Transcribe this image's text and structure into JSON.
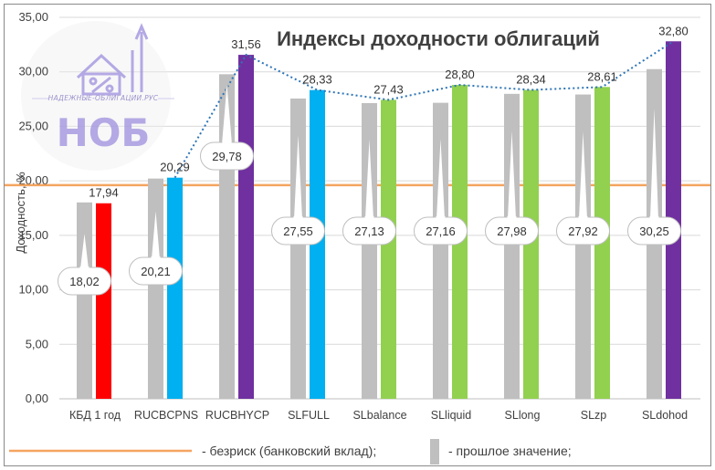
{
  "chart_data": {
    "type": "bar",
    "title": "Индексы доходности облигаций",
    "ylabel": "Доходность, %",
    "xlabel": "",
    "ylim": [
      0,
      35
    ],
    "yticks": [
      "0,00",
      "5,00",
      "10,00",
      "15,00",
      "20,00",
      "25,00",
      "30,00",
      "35,00"
    ],
    "grid": true,
    "categories": [
      "КБД 1 год",
      "RUCBCPNS",
      "RUCBHYCP",
      "SLFULL",
      "SLbalance",
      "SLliquid",
      "SLlong",
      "SLzp",
      "SLdohod"
    ],
    "series": [
      {
        "name": "прошлое значение",
        "values": [
          18.02,
          20.21,
          29.78,
          27.55,
          27.13,
          27.16,
          27.98,
          27.92,
          30.25
        ],
        "labels": [
          "18,02",
          "20,21",
          "29,78",
          "27,55",
          "27,13",
          "27,16",
          "27,98",
          "27,92",
          "30,25"
        ],
        "color": "#bfbfbf"
      },
      {
        "values": [
          17.94,
          20.29,
          31.56,
          28.33,
          27.43,
          28.8,
          28.34,
          28.61,
          32.8
        ],
        "labels": [
          "17,94",
          "20,29",
          "31,56",
          "28,33",
          "27,43",
          "28,80",
          "28,34",
          "28,61",
          "32,80"
        ],
        "colors": [
          "#ff0000",
          "#00b0f0",
          "#7030a0",
          "#00b0f0",
          "#92d050",
          "#92d050",
          "#92d050",
          "#92d050",
          "#7030a0"
        ]
      }
    ],
    "trend_line": {
      "style": "dotted",
      "color": "#2e75b6",
      "from_category_index": 1
    },
    "risk_free": {
      "value": 19.6,
      "color": "#f4a460"
    },
    "legend": {
      "position": "bottom",
      "items": [
        {
          "label": "- безриск (банковский вклад);",
          "color": "#f4a460",
          "symbol": "line"
        },
        {
          "label": "- прошлое значение;",
          "color": "#bfbfbf",
          "symbol": "box"
        }
      ]
    }
  },
  "logo": {
    "tagline": "НАДЕЖНЫЕ-ОБЛИГАЦИИ.РУС",
    "mark": "НОБ",
    "color": "#a79be0"
  }
}
